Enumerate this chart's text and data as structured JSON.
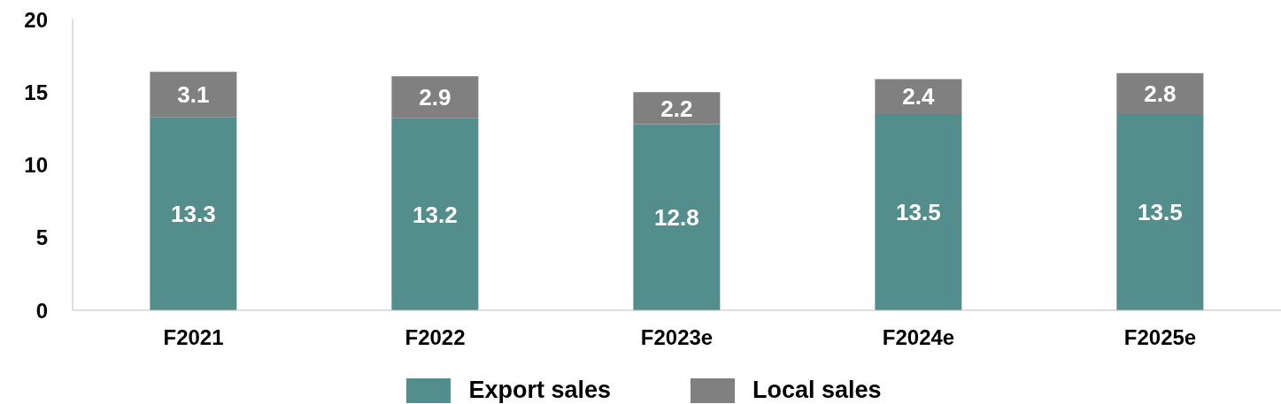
{
  "chart_data": {
    "type": "bar",
    "stacked": true,
    "categories": [
      "F2021",
      "F2022",
      "F2023e",
      "F2024e",
      "F2025e"
    ],
    "series": [
      {
        "name": "Export sales",
        "color": "#538e8c",
        "values": [
          13.3,
          13.2,
          12.8,
          13.5,
          13.5
        ]
      },
      {
        "name": "Local sales",
        "color": "#808080",
        "values": [
          3.1,
          2.9,
          2.2,
          2.4,
          2.8
        ]
      }
    ],
    "ylim": [
      0,
      20
    ],
    "yticks": [
      0,
      5,
      10,
      15,
      20
    ],
    "grid": false,
    "legend": "bottom",
    "data_labels": true
  }
}
